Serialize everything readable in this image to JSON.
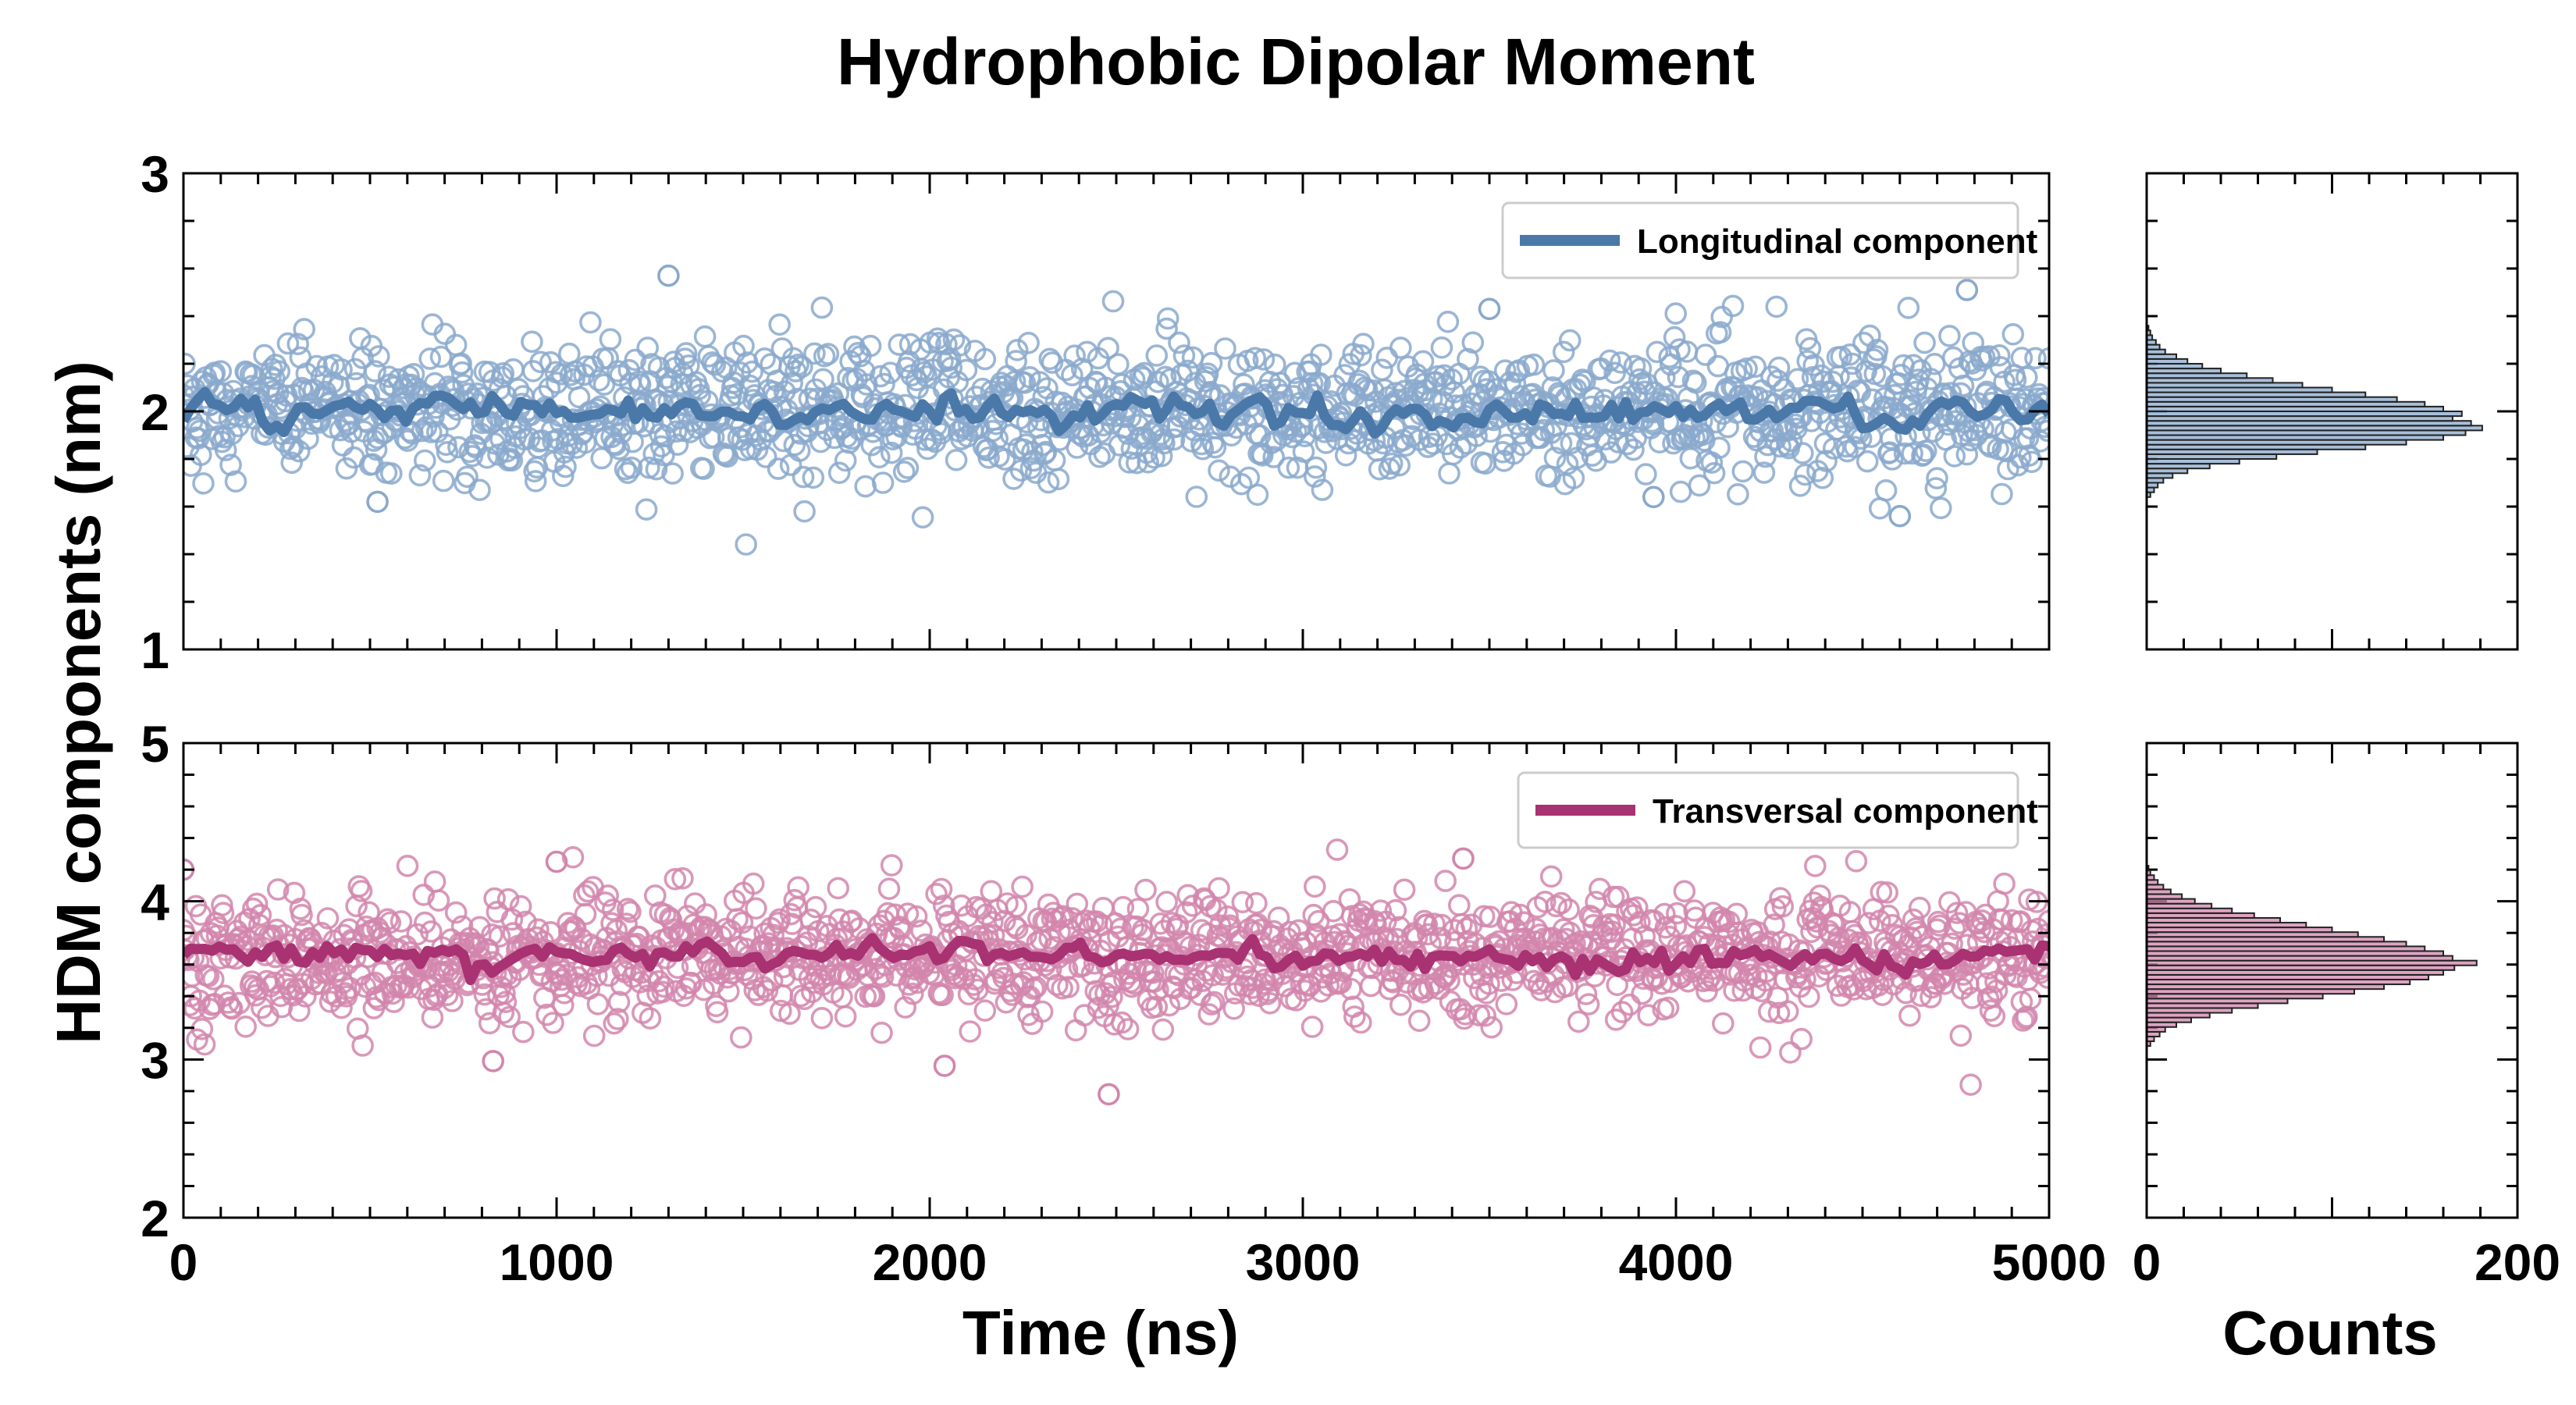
{
  "chart_data": {
    "type": "scatter",
    "title": "Hydrophobic Dipolar Moment",
    "ylabel": "HDM components (nm)",
    "xlabel": "Time (ns)",
    "hist_xlabel": "Counts",
    "xlim": [
      0,
      5000
    ],
    "xticks": [
      "0",
      "1000",
      "2000",
      "3000",
      "4000",
      "5000"
    ],
    "hist_xlim": [
      0,
      200
    ],
    "hist_xticks": [
      "0",
      "200"
    ],
    "grid": false,
    "legend_position": "top-right",
    "panels": [
      {
        "id": "longitudinal",
        "series_name": "Longitudinal component",
        "color": "#4a78a8",
        "marker_color": "#8aa9cc",
        "ylim": [
          1,
          3
        ],
        "yticks": [
          "1",
          "2",
          "3"
        ],
        "mean": 2.0,
        "std": 0.14,
        "running_mean_amplitude": 0.06,
        "outliers": [
          [
            1300,
            2.57
          ],
          [
            4780,
            2.51
          ],
          [
            3500,
            2.43
          ],
          [
            4600,
            1.56
          ],
          [
            520,
            1.62
          ],
          [
            3940,
            1.64
          ]
        ],
        "histogram": {
          "bins": [
            1.65,
            1.67,
            1.69,
            1.71,
            1.73,
            1.75,
            1.77,
            1.79,
            1.81,
            1.83,
            1.85,
            1.87,
            1.89,
            1.91,
            1.93,
            1.95,
            1.97,
            1.99,
            2.01,
            2.03,
            2.05,
            2.07,
            2.09,
            2.11,
            2.13,
            2.15,
            2.17,
            2.19,
            2.21,
            2.23,
            2.25,
            2.27,
            2.29,
            2.31,
            2.33,
            2.35
          ],
          "counts": [
            2,
            4,
            6,
            9,
            14,
            22,
            34,
            50,
            70,
            92,
            118,
            140,
            160,
            172,
            181,
            175,
            165,
            170,
            160,
            150,
            135,
            118,
            100,
            84,
            68,
            54,
            40,
            30,
            22,
            16,
            10,
            7,
            5,
            3,
            2,
            1
          ]
        }
      },
      {
        "id": "transversal",
        "series_name": "Transversal component",
        "color": "#a83272",
        "marker_color": "#d286ad",
        "ylim": [
          2,
          5
        ],
        "yticks": [
          "2",
          "3",
          "4",
          "5"
        ],
        "mean": 3.66,
        "std": 0.2,
        "running_mean_amplitude": 0.08,
        "outliers": [
          [
            2480,
            2.78
          ],
          [
            2040,
            2.96
          ],
          [
            830,
            2.99
          ],
          [
            3430,
            4.27
          ],
          [
            1000,
            4.25
          ],
          [
            0,
            4.2
          ]
        ],
        "histogram": {
          "bins": [
            3.1,
            3.13,
            3.16,
            3.19,
            3.22,
            3.25,
            3.28,
            3.31,
            3.34,
            3.37,
            3.4,
            3.43,
            3.46,
            3.49,
            3.52,
            3.55,
            3.58,
            3.61,
            3.64,
            3.67,
            3.7,
            3.73,
            3.76,
            3.79,
            3.82,
            3.85,
            3.88,
            3.91,
            3.94,
            3.97,
            4.0,
            4.03,
            4.06,
            4.09,
            4.12,
            4.15,
            4.18,
            4.21
          ],
          "counts": [
            2,
            4,
            7,
            10,
            16,
            24,
            34,
            46,
            60,
            76,
            95,
            112,
            128,
            142,
            152,
            160,
            166,
            178,
            165,
            160,
            150,
            140,
            128,
            114,
            100,
            86,
            72,
            58,
            46,
            35,
            26,
            19,
            13,
            9,
            6,
            4,
            2,
            1
          ]
        }
      }
    ]
  }
}
